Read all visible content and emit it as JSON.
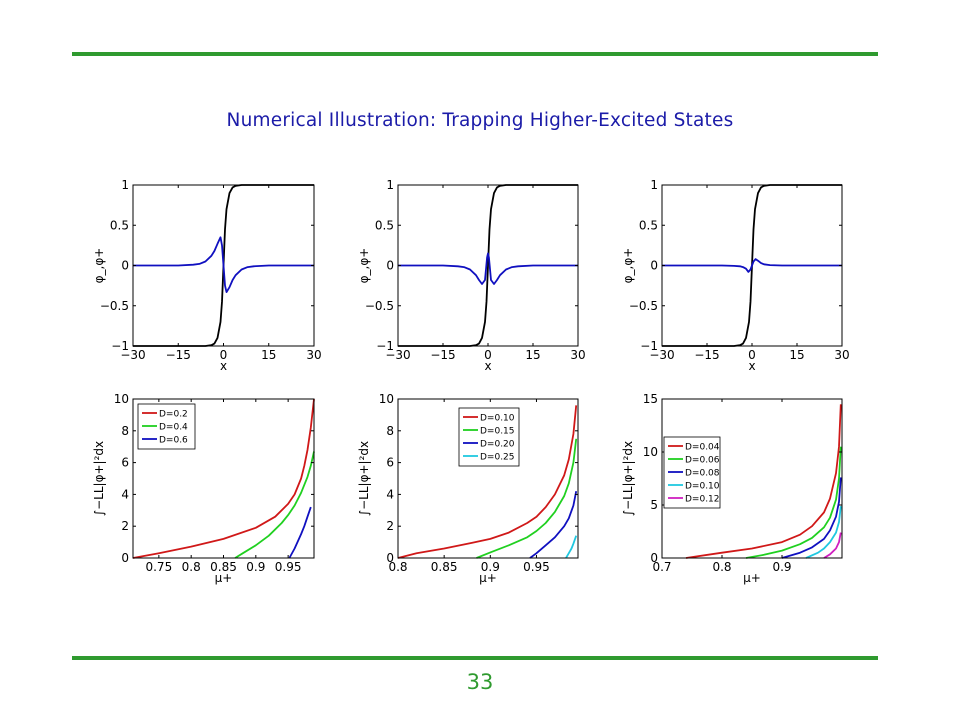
{
  "slide": {
    "title": "Numerical Illustration:  Trapping Higher-Excited States",
    "page_number": "33",
    "accent_color": "#2f9a2f",
    "title_color": "#1b1ba8"
  },
  "chart_data": [
    {
      "type": "line",
      "title": "",
      "xlabel": "x",
      "ylabel": "φ_,φ+",
      "xlim": [
        -30,
        30
      ],
      "ylim": [
        -1,
        1
      ],
      "xticks": [
        -30,
        -15,
        0,
        15,
        30
      ],
      "xtick_labels": [
        "−30",
        "−15",
        "0",
        "15",
        "30"
      ],
      "yticks": [
        -1,
        -0.5,
        0,
        0.5,
        1
      ],
      "ytick_labels": [
        "−1",
        "−0.5",
        "0",
        "0.5",
        "1"
      ],
      "grid": false,
      "series": [
        {
          "color": "#000000",
          "x": [
            -30,
            -6,
            -4,
            -3,
            -2,
            -1,
            -0.5,
            0,
            0.5,
            1,
            2,
            3,
            4,
            6,
            30
          ],
          "y": [
            -1,
            -1,
            -0.99,
            -0.97,
            -0.9,
            -0.7,
            -0.45,
            0,
            0.45,
            0.7,
            0.9,
            0.97,
            0.99,
            1,
            1
          ]
        },
        {
          "color": "#1010c0",
          "x": [
            -30,
            -15,
            -10,
            -8,
            -6,
            -4,
            -3,
            -2,
            -1,
            -0.5,
            0,
            0.5,
            1,
            2,
            3,
            4,
            6,
            8,
            10,
            15,
            30
          ],
          "y": [
            0,
            0,
            0.01,
            0.02,
            0.05,
            0.12,
            0.18,
            0.27,
            0.35,
            0.25,
            0,
            -0.25,
            -0.33,
            -0.27,
            -0.18,
            -0.12,
            -0.05,
            -0.02,
            -0.01,
            0,
            0
          ]
        }
      ]
    },
    {
      "type": "line",
      "title": "",
      "xlabel": "x",
      "ylabel": "φ_,φ+",
      "xlim": [
        -30,
        30
      ],
      "ylim": [
        -1,
        1
      ],
      "xticks": [
        -30,
        -15,
        0,
        15,
        30
      ],
      "xtick_labels": [
        "−30",
        "−15",
        "0",
        "15",
        "30"
      ],
      "yticks": [
        -1,
        -0.5,
        0,
        0.5,
        1
      ],
      "ytick_labels": [
        "−1",
        "−0.5",
        "0",
        "0.5",
        "1"
      ],
      "grid": false,
      "series": [
        {
          "color": "#000000",
          "x": [
            -30,
            -6,
            -4,
            -3,
            -2,
            -1,
            -0.5,
            0,
            0.5,
            1,
            2,
            3,
            4,
            6,
            30
          ],
          "y": [
            -1,
            -1,
            -0.99,
            -0.97,
            -0.9,
            -0.7,
            -0.45,
            0,
            0.45,
            0.7,
            0.9,
            0.97,
            0.99,
            1,
            1
          ]
        },
        {
          "color": "#1010c0",
          "x": [
            -30,
            -15,
            -10,
            -8,
            -6,
            -4,
            -3,
            -2,
            -1,
            -0.6,
            -0.3,
            0,
            0.3,
            0.6,
            1,
            2,
            3,
            4,
            6,
            8,
            10,
            15,
            30
          ],
          "y": [
            0,
            0,
            -0.01,
            -0.02,
            -0.05,
            -0.12,
            -0.18,
            -0.23,
            -0.18,
            -0.02,
            0.1,
            0.15,
            0.1,
            -0.02,
            -0.18,
            -0.23,
            -0.18,
            -0.12,
            -0.05,
            -0.02,
            -0.01,
            0,
            0
          ]
        }
      ]
    },
    {
      "type": "line",
      "title": "",
      "xlabel": "x",
      "ylabel": "φ_,φ+",
      "xlim": [
        -30,
        30
      ],
      "ylim": [
        -1,
        1
      ],
      "xticks": [
        -30,
        -15,
        0,
        15,
        30
      ],
      "xtick_labels": [
        "−30",
        "−15",
        "0",
        "15",
        "30"
      ],
      "yticks": [
        -1,
        -0.5,
        0,
        0.5,
        1
      ],
      "ytick_labels": [
        "−1",
        "−0.5",
        "0",
        "0.5",
        "1"
      ],
      "grid": false,
      "series": [
        {
          "color": "#000000",
          "x": [
            -30,
            -6,
            -4,
            -3,
            -2,
            -1,
            -0.5,
            0,
            0.5,
            1,
            2,
            3,
            4,
            6,
            30
          ],
          "y": [
            -1,
            -1,
            -0.99,
            -0.97,
            -0.9,
            -0.7,
            -0.45,
            0,
            0.45,
            0.7,
            0.9,
            0.97,
            0.99,
            1,
            1
          ]
        },
        {
          "color": "#1010c0",
          "x": [
            -30,
            -10,
            -6,
            -4,
            -3,
            -2,
            -1.2,
            -0.5,
            0,
            0.5,
            1.2,
            2,
            3,
            4,
            6,
            10,
            30
          ],
          "y": [
            0,
            0,
            -0.005,
            -0.01,
            -0.02,
            -0.04,
            -0.08,
            -0.05,
            0,
            0.05,
            0.08,
            0.06,
            0.03,
            0.015,
            0.005,
            0,
            0
          ]
        }
      ]
    },
    {
      "type": "line",
      "title": "",
      "xlabel": "μ+",
      "ylabel": "∫−LL|φ+|²dx",
      "xlim": [
        0.71,
        0.99
      ],
      "ylim": [
        0,
        10
      ],
      "xticks": [
        0.75,
        0.8,
        0.85,
        0.9,
        0.95
      ],
      "xtick_labels": [
        "0.75",
        "0.8",
        "0.85",
        "0.9",
        "0.95"
      ],
      "yticks": [
        0,
        2,
        4,
        6,
        8,
        10
      ],
      "ytick_labels": [
        "0",
        "2",
        "4",
        "6",
        "8",
        "10"
      ],
      "grid": false,
      "legend_position": "top-left",
      "series": [
        {
          "name": "D=0.2",
          "color": "#d01818",
          "x": [
            0.71,
            0.75,
            0.8,
            0.85,
            0.9,
            0.93,
            0.95,
            0.96,
            0.97,
            0.975,
            0.98,
            0.985,
            0.99
          ],
          "y": [
            0,
            0.3,
            0.72,
            1.2,
            1.9,
            2.6,
            3.4,
            4.0,
            5.0,
            5.8,
            6.8,
            8.2,
            10
          ]
        },
        {
          "name": "D=0.4",
          "color": "#20d020",
          "x": [
            0.868,
            0.88,
            0.9,
            0.92,
            0.94,
            0.95,
            0.96,
            0.97,
            0.98,
            0.985,
            0.99
          ],
          "y": [
            0,
            0.3,
            0.8,
            1.4,
            2.2,
            2.7,
            3.3,
            4.1,
            5.1,
            5.8,
            6.7
          ]
        },
        {
          "name": "D=0.6",
          "color": "#1010c0",
          "x": [
            0.952,
            0.96,
            0.97,
            0.975,
            0.98,
            0.985
          ],
          "y": [
            0,
            0.6,
            1.5,
            2.0,
            2.6,
            3.2
          ]
        }
      ]
    },
    {
      "type": "line",
      "title": "",
      "xlabel": "μ+",
      "ylabel": "∫−LL|φ+|²dx",
      "xlim": [
        0.8,
        0.995
      ],
      "ylim": [
        0,
        10
      ],
      "xticks": [
        0.8,
        0.85,
        0.9,
        0.95
      ],
      "xtick_labels": [
        "0.8",
        "0.85",
        "0.9",
        "0.95"
      ],
      "yticks": [
        0,
        2,
        4,
        6,
        8,
        10
      ],
      "ytick_labels": [
        "0",
        "2",
        "4",
        "6",
        "8",
        "10"
      ],
      "grid": false,
      "legend_position": "top-center",
      "series": [
        {
          "name": "D=0.10",
          "color": "#d01818",
          "x": [
            0.8,
            0.82,
            0.85,
            0.88,
            0.9,
            0.92,
            0.94,
            0.95,
            0.96,
            0.97,
            0.98,
            0.985,
            0.99,
            0.993
          ],
          "y": [
            0,
            0.3,
            0.6,
            0.95,
            1.2,
            1.6,
            2.2,
            2.6,
            3.2,
            4.0,
            5.2,
            6.2,
            7.8,
            9.6
          ]
        },
        {
          "name": "D=0.15",
          "color": "#20d020",
          "x": [
            0.885,
            0.9,
            0.92,
            0.94,
            0.95,
            0.96,
            0.97,
            0.98,
            0.985,
            0.99,
            0.993
          ],
          "y": [
            0,
            0.35,
            0.8,
            1.3,
            1.7,
            2.2,
            2.9,
            3.9,
            4.7,
            6.0,
            7.5
          ]
        },
        {
          "name": "D=0.20",
          "color": "#1010c0",
          "x": [
            0.943,
            0.95,
            0.96,
            0.97,
            0.98,
            0.985,
            0.99,
            0.993
          ],
          "y": [
            0,
            0.3,
            0.8,
            1.3,
            2.0,
            2.5,
            3.3,
            4.2
          ]
        },
        {
          "name": "D=0.25",
          "color": "#20c8e0",
          "x": [
            0.982,
            0.985,
            0.988,
            0.99,
            0.993
          ],
          "y": [
            0,
            0.3,
            0.6,
            0.9,
            1.4
          ]
        }
      ]
    },
    {
      "type": "line",
      "title": "",
      "xlabel": "μ+",
      "ylabel": "∫−LL|φ+|²dx",
      "xlim": [
        0.7,
        1.0
      ],
      "ylim": [
        0,
        15
      ],
      "xticks": [
        0.7,
        0.8,
        0.9
      ],
      "xtick_labels": [
        "0.7",
        "0.8",
        "0.9"
      ],
      "yticks": [
        0,
        5,
        10,
        15
      ],
      "ytick_labels": [
        "0",
        "5",
        "10",
        "15"
      ],
      "grid": false,
      "legend_position": "top-left",
      "series": [
        {
          "name": "D=0.04",
          "color": "#d01818",
          "x": [
            0.74,
            0.8,
            0.85,
            0.9,
            0.93,
            0.95,
            0.97,
            0.98,
            0.99,
            0.995,
            0.998
          ],
          "y": [
            0,
            0.5,
            0.9,
            1.5,
            2.2,
            3.0,
            4.3,
            5.6,
            8.0,
            10.5,
            14.5
          ]
        },
        {
          "name": "D=0.06",
          "color": "#20d020",
          "x": [
            0.84,
            0.87,
            0.9,
            0.93,
            0.95,
            0.97,
            0.98,
            0.99,
            0.995,
            0.998
          ],
          "y": [
            0,
            0.3,
            0.7,
            1.3,
            1.9,
            2.9,
            3.8,
            5.5,
            7.5,
            10.5
          ]
        },
        {
          "name": "D=0.08",
          "color": "#1010c0",
          "x": [
            0.9,
            0.93,
            0.95,
            0.97,
            0.98,
            0.99,
            0.995,
            0.998
          ],
          "y": [
            0,
            0.5,
            1.0,
            1.8,
            2.6,
            3.9,
            5.3,
            7.6
          ]
        },
        {
          "name": "D=0.10",
          "color": "#20c8e0",
          "x": [
            0.94,
            0.96,
            0.97,
            0.98,
            0.99,
            0.995,
            0.998
          ],
          "y": [
            0,
            0.5,
            0.9,
            1.5,
            2.4,
            3.4,
            4.9
          ]
        },
        {
          "name": "D=0.12",
          "color": "#d020c0",
          "x": [
            0.97,
            0.98,
            0.99,
            0.995,
            0.998
          ],
          "y": [
            0,
            0.35,
            0.9,
            1.5,
            2.4
          ]
        }
      ]
    }
  ]
}
